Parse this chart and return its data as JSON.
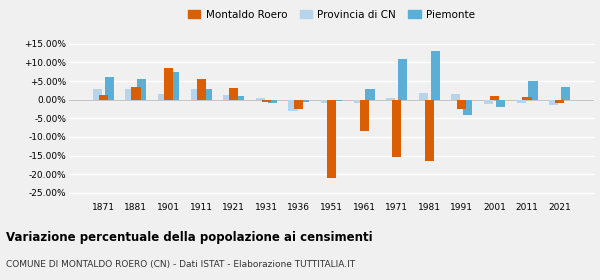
{
  "years": [
    1871,
    1881,
    1901,
    1911,
    1921,
    1931,
    1936,
    1951,
    1961,
    1971,
    1981,
    1991,
    2001,
    2011,
    2021
  ],
  "montaldo": [
    1.2,
    3.5,
    8.5,
    5.5,
    3.2,
    -0.5,
    -2.5,
    -21.0,
    -8.5,
    -15.5,
    -16.5,
    -2.5,
    1.0,
    0.7,
    -1.0
  ],
  "provincia": [
    3.0,
    2.8,
    1.5,
    3.0,
    1.2,
    0.5,
    -3.0,
    -1.0,
    -1.0,
    0.5,
    1.8,
    1.5,
    -1.2,
    -0.8,
    -1.5
  ],
  "piemonte": [
    6.0,
    5.5,
    7.5,
    2.8,
    1.0,
    -1.0,
    -0.5,
    -0.3,
    3.0,
    11.0,
    13.0,
    -4.0,
    -2.0,
    5.0,
    3.5
  ],
  "color_montaldo": "#d95f02",
  "color_provincia": "#b8d4ea",
  "color_piemonte": "#5baed6",
  "title": "Variazione percentuale della popolazione ai censimenti",
  "subtitle": "COMUNE DI MONTALDO ROERO (CN) - Dati ISTAT - Elaborazione TUTTITALIA.IT",
  "ylim": [
    -27,
    17
  ],
  "yticks": [
    -25,
    -20,
    -15,
    -10,
    -5,
    0,
    5,
    10,
    15
  ],
  "ytick_labels": [
    "-25.00%",
    "-20.00%",
    "-15.00%",
    "-10.00%",
    "-5.00%",
    "0.00%",
    "+5.00%",
    "+10.00%",
    "+15.00%"
  ],
  "bg_color": "#f0f0f0",
  "grid_color": "#ffffff",
  "bar_width": 0.28
}
